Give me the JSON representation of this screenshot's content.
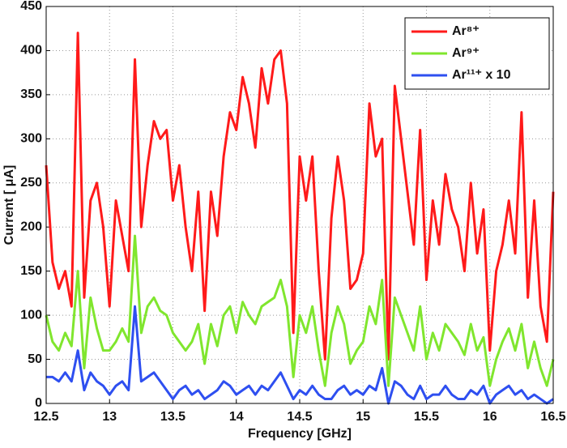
{
  "chart_data": {
    "type": "line",
    "xlabel": "Frequency [GHz]",
    "ylabel": "Current [ μA]",
    "x": [
      12.5,
      12.55,
      12.6,
      12.65,
      12.7,
      12.75,
      12.8,
      12.85,
      12.9,
      12.95,
      13,
      13.05,
      13.1,
      13.15,
      13.2,
      13.25,
      13.3,
      13.35,
      13.4,
      13.45,
      13.5,
      13.55,
      13.6,
      13.65,
      13.7,
      13.75,
      13.8,
      13.85,
      13.9,
      13.95,
      14,
      14.05,
      14.1,
      14.15,
      14.2,
      14.25,
      14.3,
      14.35,
      14.4,
      14.45,
      14.5,
      14.55,
      14.6,
      14.65,
      14.7,
      14.75,
      14.8,
      14.85,
      14.9,
      14.95,
      15,
      15.05,
      15.1,
      15.15,
      15.2,
      15.25,
      15.3,
      15.35,
      15.4,
      15.45,
      15.5,
      15.55,
      15.6,
      15.65,
      15.7,
      15.75,
      15.8,
      15.85,
      15.9,
      15.95,
      16,
      16.05,
      16.1,
      16.15,
      16.2,
      16.25,
      16.3,
      16.35,
      16.4,
      16.45,
      16.5
    ],
    "series": [
      {
        "name": "Ar⁸⁺",
        "color": "#ff1a1a",
        "values": [
          270,
          160,
          130,
          150,
          110,
          420,
          120,
          230,
          250,
          200,
          110,
          230,
          190,
          150,
          390,
          200,
          270,
          320,
          300,
          310,
          230,
          270,
          200,
          150,
          240,
          105,
          240,
          190,
          280,
          330,
          310,
          370,
          340,
          290,
          380,
          340,
          390,
          400,
          340,
          80,
          280,
          230,
          280,
          150,
          50,
          210,
          280,
          230,
          130,
          140,
          170,
          340,
          280,
          300,
          50,
          360,
          300,
          240,
          180,
          310,
          140,
          230,
          180,
          260,
          220,
          200,
          150,
          250,
          170,
          220,
          60,
          150,
          180,
          230,
          170,
          330,
          120,
          230,
          110,
          70,
          240
        ]
      },
      {
        "name": "Ar⁹⁺",
        "color": "#80e62e",
        "values": [
          100,
          70,
          60,
          80,
          65,
          150,
          40,
          120,
          85,
          60,
          60,
          70,
          85,
          70,
          190,
          80,
          110,
          120,
          105,
          100,
          80,
          70,
          60,
          70,
          90,
          45,
          90,
          65,
          100,
          110,
          80,
          115,
          100,
          90,
          110,
          115,
          120,
          140,
          110,
          30,
          100,
          80,
          110,
          60,
          20,
          80,
          110,
          90,
          45,
          60,
          70,
          110,
          90,
          140,
          20,
          120,
          100,
          80,
          60,
          110,
          50,
          80,
          60,
          90,
          80,
          70,
          55,
          90,
          60,
          75,
          20,
          50,
          70,
          85,
          60,
          90,
          40,
          70,
          40,
          20,
          50
        ]
      },
      {
        "name": "Ar¹¹⁺ x 10",
        "color": "#2e4ff0",
        "values": [
          30,
          30,
          25,
          35,
          25,
          60,
          15,
          35,
          25,
          20,
          10,
          20,
          25,
          15,
          110,
          25,
          30,
          35,
          25,
          15,
          5,
          15,
          20,
          10,
          15,
          5,
          10,
          15,
          25,
          20,
          10,
          15,
          20,
          10,
          20,
          15,
          25,
          35,
          20,
          5,
          15,
          10,
          20,
          10,
          5,
          5,
          15,
          20,
          10,
          15,
          10,
          20,
          15,
          40,
          0,
          25,
          20,
          10,
          5,
          20,
          5,
          10,
          10,
          20,
          10,
          5,
          5,
          15,
          10,
          20,
          0,
          10,
          15,
          20,
          10,
          15,
          5,
          10,
          5,
          0,
          5
        ]
      }
    ],
    "xlim": [
      12.5,
      16.5
    ],
    "xticks": [
      12.5,
      13,
      13.5,
      14,
      14.5,
      15,
      15.5,
      16,
      16.5
    ],
    "ylim": [
      0,
      450
    ],
    "yticks": [
      0,
      50,
      100,
      150,
      200,
      250,
      300,
      350,
      400,
      450
    ],
    "grid": true,
    "legend": "upper right"
  }
}
